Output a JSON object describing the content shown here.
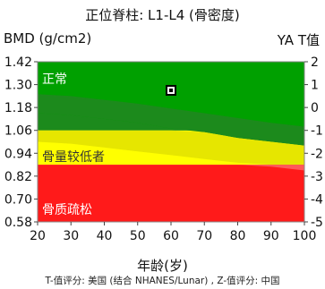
{
  "chart_data": {
    "type": "area",
    "title": "正位脊柱: L1-L4 (骨密度)",
    "ylabel": "BMD (g/cm2)",
    "y2label": "YA T值",
    "xlabel": "年龄(岁)",
    "footnote": "T-值评分: 美国 (结合 NHANES/Lunar) , Z-值评分: 中国",
    "x_ticks": [
      "20",
      "30",
      "40",
      "50",
      "60",
      "70",
      "80",
      "90",
      "100"
    ],
    "y_ticks": [
      "1.42",
      "1.30",
      "1.18",
      "1.06",
      "0.94",
      "0.82",
      "0.70",
      "0.58"
    ],
    "y2_ticks": [
      "2",
      "1",
      "0",
      "-1",
      "-2",
      "-3",
      "-4",
      "-5"
    ],
    "xlim": [
      20,
      100
    ],
    "ylim": [
      0.58,
      1.42
    ],
    "zones": [
      {
        "label": "正常",
        "from": 1.06,
        "to": 1.42,
        "color": "#00a000"
      },
      {
        "label": "骨量较低者",
        "from": 0.88,
        "to": 1.06,
        "color": "#ffff00"
      },
      {
        "label": "骨质疏松",
        "from": 0.58,
        "to": 0.88,
        "color": "#ff1a1a"
      }
    ],
    "reference_band": {
      "color_upper": "#1c8a1c",
      "color_lower": "#e6e600",
      "color_tail": "#ff5a5a",
      "upper": [
        [
          20,
          1.25
        ],
        [
          30,
          1.24
        ],
        [
          40,
          1.22
        ],
        [
          50,
          1.2
        ],
        [
          60,
          1.175
        ],
        [
          70,
          1.15
        ],
        [
          80,
          1.125
        ],
        [
          90,
          1.1
        ],
        [
          100,
          1.08
        ]
      ],
      "mean": [
        [
          20,
          1.15
        ],
        [
          30,
          1.14
        ],
        [
          40,
          1.12
        ],
        [
          50,
          1.1
        ],
        [
          60,
          1.07
        ],
        [
          70,
          1.05
        ],
        [
          80,
          1.02
        ],
        [
          90,
          1.0
        ],
        [
          100,
          0.98
        ]
      ],
      "lower": [
        [
          20,
          1.0
        ],
        [
          30,
          0.99
        ],
        [
          40,
          0.97
        ],
        [
          50,
          0.95
        ],
        [
          60,
          0.93
        ],
        [
          70,
          0.91
        ],
        [
          80,
          0.89
        ],
        [
          90,
          0.87
        ],
        [
          100,
          0.85
        ]
      ]
    },
    "points": [
      {
        "x": 60,
        "y": 1.27
      }
    ],
    "grid": false
  }
}
